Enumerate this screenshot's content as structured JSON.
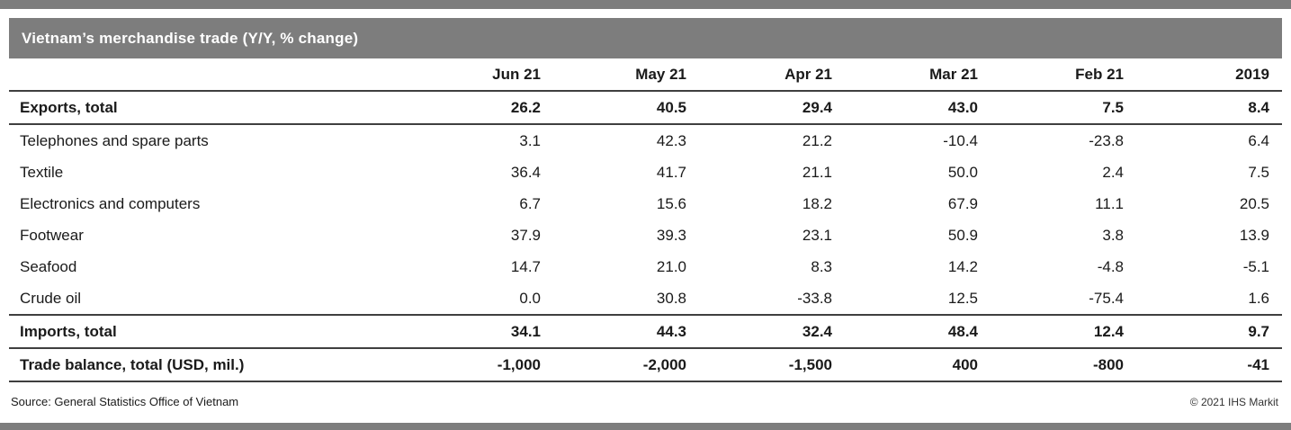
{
  "title_bar": {
    "title": "Vietnam’s merchandise trade (Y/Y, % change)"
  },
  "footer": {
    "source": "Source:  General Statistics Office of Vietnam",
    "copyright": "© 2021 IHS Markit"
  },
  "colors": {
    "header_bar": "#7d7d7d",
    "rule": "#3f3f3f",
    "text": "#1a1a1a"
  },
  "chart_data": {
    "type": "table",
    "title": "Vietnam’s merchandise trade (Y/Y, % change)",
    "columns": [
      "Jun 21",
      "May 21",
      "Apr 21",
      "Mar 21",
      "Feb 21",
      "2019"
    ],
    "rows": [
      {
        "label": "Exports, total",
        "values": [
          "26.2",
          "40.5",
          "29.4",
          "43.0",
          "7.5",
          "8.4"
        ],
        "bold": true,
        "rule_below": true
      },
      {
        "label": "Telephones and spare parts",
        "values": [
          "3.1",
          "42.3",
          "21.2",
          "-10.4",
          "-23.8",
          "6.4"
        ],
        "bold": false,
        "rule_below": false
      },
      {
        "label": "Textile",
        "values": [
          "36.4",
          "41.7",
          "21.1",
          "50.0",
          "2.4",
          "7.5"
        ],
        "bold": false,
        "rule_below": false
      },
      {
        "label": "Electronics and computers",
        "values": [
          "6.7",
          "15.6",
          "18.2",
          "67.9",
          "11.1",
          "20.5"
        ],
        "bold": false,
        "rule_below": false
      },
      {
        "label": "Footwear",
        "values": [
          "37.9",
          "39.3",
          "23.1",
          "50.9",
          "3.8",
          "13.9"
        ],
        "bold": false,
        "rule_below": false
      },
      {
        "label": "Seafood",
        "values": [
          "14.7",
          "21.0",
          "8.3",
          "14.2",
          "-4.8",
          "-5.1"
        ],
        "bold": false,
        "rule_below": false
      },
      {
        "label": "Crude oil",
        "values": [
          "0.0",
          "30.8",
          "-33.8",
          "12.5",
          "-75.4",
          "1.6"
        ],
        "bold": false,
        "rule_below": true
      },
      {
        "label": "Imports, total",
        "values": [
          "34.1",
          "44.3",
          "32.4",
          "48.4",
          "12.4",
          "9.7"
        ],
        "bold": true,
        "rule_below": true
      },
      {
        "label": "Trade balance, total (USD, mil.)",
        "values": [
          "-1,000",
          "-2,000",
          "-1,500",
          "400",
          "-800",
          "-41"
        ],
        "bold": true,
        "rule_below": true
      }
    ]
  }
}
